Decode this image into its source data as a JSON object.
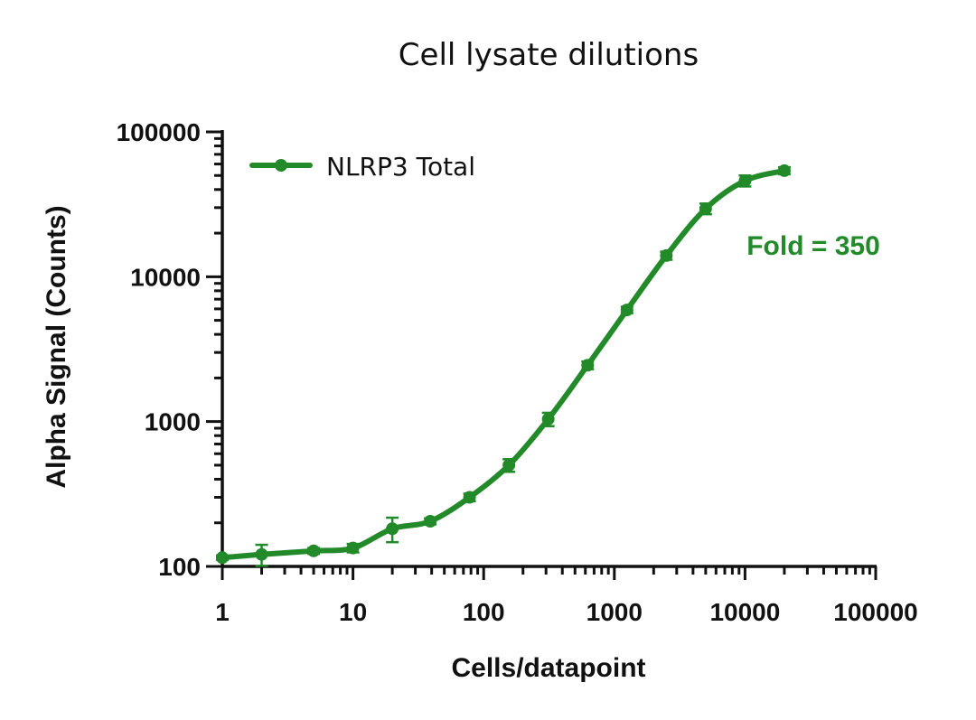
{
  "chart_data": {
    "type": "scatter",
    "title": "Cell lysate dilutions",
    "xlabel": "Cells/datapoint",
    "ylabel": "Alpha Signal (Counts)",
    "xscale": "log",
    "yscale": "log",
    "xlim": [
      1,
      100000
    ],
    "ylim": [
      100,
      100000
    ],
    "xticks": [
      1,
      10,
      100,
      1000,
      10000,
      100000
    ],
    "xtick_labels": [
      "1",
      "10",
      "100",
      "1000",
      "10000",
      "100000"
    ],
    "yticks": [
      100,
      1000,
      10000,
      100000
    ],
    "ytick_labels": [
      "100",
      "1000",
      "10000",
      "100000"
    ],
    "grid": false,
    "legend_position": "top-left",
    "series": [
      {
        "name": "NLRP3 Total",
        "color": "#238a2a",
        "fit": "sigmoidal curve",
        "points": [
          {
            "x": 1,
            "y": 115,
            "err": 4
          },
          {
            "x": 2,
            "y": 121,
            "err": 20
          },
          {
            "x": 5,
            "y": 128,
            "err": 6
          },
          {
            "x": 10,
            "y": 134,
            "err": 9
          },
          {
            "x": 20,
            "y": 182,
            "err": 35
          },
          {
            "x": 39,
            "y": 205,
            "err": 10
          },
          {
            "x": 78,
            "y": 300,
            "err": 18
          },
          {
            "x": 156,
            "y": 500,
            "err": 50
          },
          {
            "x": 312,
            "y": 1040,
            "err": 110
          },
          {
            "x": 625,
            "y": 2450,
            "err": 150
          },
          {
            "x": 1250,
            "y": 5900,
            "err": 300
          },
          {
            "x": 2500,
            "y": 14000,
            "err": 900
          },
          {
            "x": 5000,
            "y": 29500,
            "err": 2500
          },
          {
            "x": 10000,
            "y": 46000,
            "err": 4000
          },
          {
            "x": 20000,
            "y": 54000,
            "err": 3000
          }
        ]
      }
    ],
    "annotations": [
      {
        "text": "Fold = 350",
        "color": "#238a2a"
      }
    ]
  }
}
